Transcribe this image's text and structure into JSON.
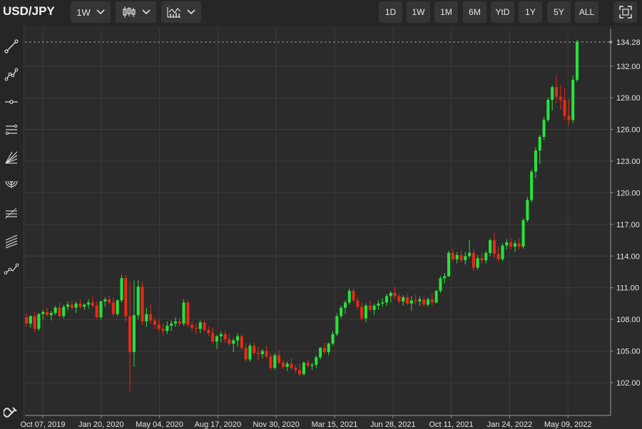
{
  "header": {
    "symbol": "USD/JPY",
    "interval": "1W",
    "chart_style_icon": "candlestick-icon",
    "indicators_icon": "indicators-icon",
    "ranges": [
      "1D",
      "1W",
      "1M",
      "6M",
      "YtD",
      "1Y",
      "5Y",
      "ALL"
    ],
    "fullscreen_icon": "fullscreen-icon"
  },
  "left_toolbar": {
    "tools": [
      "trend-line-icon",
      "polyline-icon",
      "horizontal-line-icon",
      "parallel-channel-icon",
      "fan-icon",
      "arc-icon",
      "fib-retracement-icon",
      "fib-channel-icon",
      "path-icon"
    ],
    "bottom_tool": "magnet-icon"
  },
  "colors": {
    "background": "#2b2b2b",
    "up": "#26e33a",
    "down": "#e62b16",
    "grid": "#3c3c3c"
  },
  "chart_data": {
    "type": "candlestick",
    "symbol": "USD/JPY",
    "interval": "1W",
    "ylim": [
      100.0,
      135.0
    ],
    "y_ticks": [
      "102.00",
      "105.00",
      "108.00",
      "111.00",
      "114.00",
      "117.00",
      "120.00",
      "123.00",
      "126.00",
      "129.00",
      "132.00"
    ],
    "last_price": "134.28",
    "x_ticks": [
      "Oct 07, 2019",
      "Jan 20, 2020",
      "May 04, 2020",
      "Aug 17, 2020",
      "Nov 30, 2020",
      "Mar 15, 2021",
      "Jun 28, 2021",
      "Oct 11, 2021",
      "Jan 24, 2022",
      "May 09, 2022"
    ],
    "grid": true,
    "candles": [
      [
        108.2,
        108.6,
        107.3,
        107.6
      ],
      [
        107.6,
        108.4,
        107.2,
        108.3
      ],
      [
        108.3,
        108.7,
        106.8,
        107.1
      ],
      [
        107.1,
        108.6,
        106.9,
        108.5
      ],
      [
        108.5,
        108.9,
        108.0,
        108.7
      ],
      [
        108.7,
        109.1,
        108.3,
        108.4
      ],
      [
        108.4,
        108.8,
        107.9,
        108.6
      ],
      [
        108.6,
        109.3,
        108.4,
        109.1
      ],
      [
        109.1,
        109.6,
        108.2,
        108.3
      ],
      [
        108.3,
        109.4,
        108.1,
        109.2
      ],
      [
        109.2,
        109.7,
        108.8,
        109.4
      ],
      [
        109.4,
        109.8,
        108.9,
        109.1
      ],
      [
        109.1,
        109.7,
        108.6,
        109.5
      ],
      [
        109.5,
        109.9,
        109.0,
        109.2
      ],
      [
        109.2,
        109.5,
        108.9,
        109.4
      ],
      [
        109.4,
        109.9,
        109.0,
        109.6
      ],
      [
        109.6,
        110.2,
        109.1,
        109.3
      ],
      [
        109.3,
        109.7,
        108.0,
        108.2
      ],
      [
        108.2,
        109.8,
        108.0,
        109.7
      ],
      [
        109.7,
        110.1,
        109.2,
        109.9
      ],
      [
        109.9,
        110.3,
        109.4,
        109.6
      ],
      [
        109.6,
        110.1,
        108.3,
        108.5
      ],
      [
        108.5,
        109.9,
        108.3,
        109.8
      ],
      [
        109.8,
        112.2,
        109.6,
        111.9
      ],
      [
        111.9,
        112.2,
        107.8,
        108.3
      ],
      [
        108.3,
        111.6,
        101.2,
        104.9
      ],
      [
        104.9,
        111.7,
        103.5,
        108.4
      ],
      [
        108.4,
        111.7,
        108.0,
        111.1
      ],
      [
        111.1,
        111.6,
        107.5,
        107.8
      ],
      [
        107.8,
        109.1,
        107.3,
        108.5
      ],
      [
        108.5,
        109.4,
        107.6,
        107.9
      ],
      [
        107.9,
        108.2,
        107.1,
        107.5
      ],
      [
        107.5,
        108.0,
        106.9,
        107.1
      ],
      [
        107.1,
        107.6,
        106.5,
        106.9
      ],
      [
        106.9,
        107.8,
        106.6,
        107.4
      ],
      [
        107.4,
        107.9,
        106.9,
        107.6
      ],
      [
        107.6,
        108.2,
        107.3,
        107.8
      ],
      [
        107.8,
        108.1,
        107.4,
        107.6
      ],
      [
        107.6,
        109.9,
        107.4,
        109.6
      ],
      [
        109.6,
        109.8,
        107.3,
        107.5
      ],
      [
        107.5,
        107.8,
        106.9,
        107.2
      ],
      [
        107.2,
        107.6,
        106.6,
        107.1
      ],
      [
        107.1,
        107.9,
        106.7,
        107.7
      ],
      [
        107.7,
        107.9,
        106.8,
        107.0
      ],
      [
        107.0,
        107.3,
        106.4,
        106.7
      ],
      [
        106.7,
        107.2,
        105.7,
        105.9
      ],
      [
        105.9,
        106.5,
        105.2,
        106.4
      ],
      [
        106.4,
        106.9,
        105.8,
        106.6
      ],
      [
        106.6,
        106.9,
        105.8,
        106.1
      ],
      [
        106.1,
        106.6,
        105.5,
        105.7
      ],
      [
        105.7,
        106.2,
        104.9,
        106.0
      ],
      [
        106.0,
        106.7,
        105.4,
        106.4
      ],
      [
        106.4,
        106.6,
        105.1,
        105.3
      ],
      [
        105.3,
        105.7,
        104.0,
        104.2
      ],
      [
        104.2,
        105.7,
        104.0,
        105.5
      ],
      [
        105.5,
        105.8,
        104.6,
        104.8
      ],
      [
        104.8,
        105.4,
        104.1,
        104.7
      ],
      [
        104.7,
        105.2,
        104.3,
        105.0
      ],
      [
        105.0,
        105.5,
        104.3,
        104.5
      ],
      [
        104.5,
        104.8,
        103.2,
        103.4
      ],
      [
        103.4,
        104.8,
        103.2,
        104.6
      ],
      [
        104.6,
        105.1,
        103.7,
        103.9
      ],
      [
        103.9,
        104.2,
        103.3,
        103.5
      ],
      [
        103.5,
        104.0,
        103.1,
        103.8
      ],
      [
        103.8,
        104.3,
        103.2,
        103.4
      ],
      [
        103.4,
        103.7,
        102.9,
        103.2
      ],
      [
        103.2,
        103.8,
        102.6,
        102.8
      ],
      [
        102.8,
        104.0,
        102.7,
        103.9
      ],
      [
        103.9,
        104.2,
        103.4,
        103.6
      ],
      [
        103.6,
        103.9,
        103.2,
        103.7
      ],
      [
        103.7,
        104.6,
        103.4,
        104.4
      ],
      [
        104.4,
        105.4,
        104.2,
        105.3
      ],
      [
        105.3,
        105.8,
        104.7,
        104.9
      ],
      [
        104.9,
        105.8,
        104.6,
        105.7
      ],
      [
        105.7,
        106.9,
        105.5,
        106.6
      ],
      [
        106.6,
        108.6,
        106.4,
        108.3
      ],
      [
        108.3,
        109.3,
        108.1,
        109.1
      ],
      [
        109.1,
        109.8,
        108.5,
        109.6
      ],
      [
        109.6,
        110.9,
        109.4,
        110.7
      ],
      [
        110.7,
        110.9,
        109.6,
        109.8
      ],
      [
        109.8,
        110.1,
        108.9,
        109.2
      ],
      [
        109.2,
        109.6,
        107.9,
        108.1
      ],
      [
        108.1,
        109.5,
        107.7,
        109.3
      ],
      [
        109.3,
        109.8,
        108.7,
        108.9
      ],
      [
        108.9,
        109.5,
        108.4,
        109.3
      ],
      [
        109.3,
        109.8,
        108.9,
        109.5
      ],
      [
        109.5,
        110.0,
        109.2,
        109.6
      ],
      [
        109.6,
        110.4,
        109.3,
        110.2
      ],
      [
        110.2,
        110.7,
        109.6,
        110.5
      ],
      [
        110.5,
        111.1,
        109.9,
        110.2
      ],
      [
        110.2,
        110.4,
        109.5,
        109.7
      ],
      [
        109.7,
        110.3,
        109.3,
        110.1
      ],
      [
        110.1,
        110.5,
        109.3,
        109.5
      ],
      [
        109.5,
        110.2,
        108.8,
        109.8
      ],
      [
        109.8,
        110.3,
        109.4,
        109.7
      ],
      [
        109.7,
        110.2,
        109.3,
        109.9
      ],
      [
        109.9,
        110.2,
        109.2,
        109.4
      ],
      [
        109.4,
        110.1,
        109.2,
        109.9
      ],
      [
        109.9,
        110.5,
        109.3,
        109.6
      ],
      [
        109.6,
        110.8,
        109.5,
        110.7
      ],
      [
        110.7,
        112.1,
        110.5,
        111.9
      ],
      [
        111.9,
        112.4,
        111.4,
        112.1
      ],
      [
        112.1,
        114.5,
        112.0,
        114.3
      ],
      [
        114.3,
        114.7,
        113.5,
        113.7
      ],
      [
        113.7,
        114.4,
        113.3,
        114.1
      ],
      [
        114.1,
        114.6,
        113.4,
        113.6
      ],
      [
        113.6,
        114.4,
        113.2,
        114.0
      ],
      [
        114.0,
        115.5,
        113.8,
        114.3
      ],
      [
        114.3,
        114.6,
        112.6,
        112.9
      ],
      [
        112.9,
        114.1,
        112.7,
        113.8
      ],
      [
        113.8,
        114.3,
        113.3,
        113.6
      ],
      [
        113.6,
        114.5,
        113.3,
        114.3
      ],
      [
        114.3,
        115.7,
        114.0,
        115.5
      ],
      [
        115.5,
        116.2,
        113.8,
        114.2
      ],
      [
        114.2,
        114.9,
        113.5,
        113.7
      ],
      [
        113.7,
        115.2,
        113.5,
        115.0
      ],
      [
        115.0,
        115.6,
        114.6,
        115.3
      ],
      [
        115.3,
        115.7,
        114.6,
        114.9
      ],
      [
        114.9,
        115.5,
        114.4,
        115.2
      ],
      [
        115.2,
        115.7,
        114.6,
        114.9
      ],
      [
        114.9,
        117.6,
        114.7,
        117.4
      ],
      [
        117.4,
        119.6,
        117.2,
        119.3
      ],
      [
        119.3,
        122.2,
        119.1,
        122.0
      ],
      [
        122.0,
        124.3,
        121.4,
        124.0
      ],
      [
        124.0,
        125.5,
        122.7,
        125.3
      ],
      [
        125.3,
        127.2,
        125.0,
        126.9
      ],
      [
        126.9,
        129.0,
        126.7,
        128.8
      ],
      [
        128.8,
        130.2,
        127.8,
        130.0
      ],
      [
        130.0,
        131.1,
        128.5,
        129.1
      ],
      [
        129.1,
        130.2,
        127.9,
        128.8
      ],
      [
        128.8,
        129.9,
        126.9,
        127.3
      ],
      [
        127.3,
        128.9,
        126.4,
        126.9
      ],
      [
        126.9,
        131.1,
        126.6,
        130.7
      ],
      [
        130.7,
        134.5,
        130.5,
        134.3
      ]
    ]
  }
}
